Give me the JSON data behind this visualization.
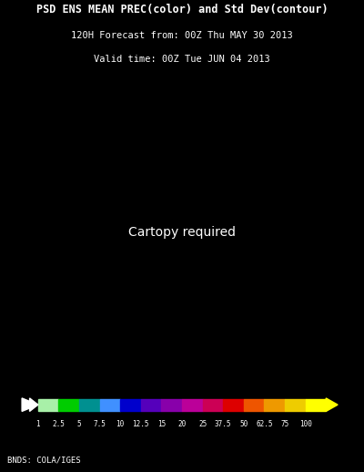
{
  "title_line1": "PSD ENS MEAN PREC(color) and Std Dev(contour)",
  "title_line2": "120H Forecast from: 00Z Thu MAY 30 2013",
  "title_line3": "Valid time: 00Z Tue JUN 04 2013",
  "background_color": "#000000",
  "colorbar_labels": [
    "1",
    "2.5",
    "5",
    "7.5",
    "10",
    "12.5",
    "15",
    "20",
    "25",
    "37.5",
    "50",
    "62.5",
    "75",
    "100"
  ],
  "colorbar_colors": [
    "#a8f0a8",
    "#00cc00",
    "#009090",
    "#4090ff",
    "#0000cc",
    "#5500bb",
    "#8800aa",
    "#bb0099",
    "#cc0055",
    "#dd0000",
    "#ee5500",
    "#ee9900",
    "#eecc00",
    "#ffff00"
  ],
  "credit_text": "BNDS: COLA/IGES",
  "title_fontsize": 8.5,
  "subtitle_fontsize": 7.5,
  "credit_fontsize": 6.5,
  "map_extent": [
    -180,
    10,
    0,
    90
  ],
  "contour_color_white": "#ffffff",
  "contour_color_gray": "#cccccc",
  "land_color": "#000000",
  "ocean_color": "#000000",
  "border_color": "#ffffff"
}
